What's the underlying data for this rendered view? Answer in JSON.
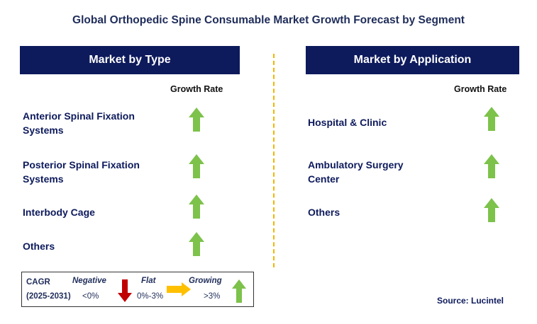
{
  "title": "Global Orthopedic Spine Consumable Market Growth Forecast by Segment",
  "left_panel": {
    "header": "Market by Type",
    "growth_header": "Growth Rate",
    "rows": [
      {
        "line1": "Anterior Spinal Fixation",
        "line2": "Systems",
        "trend": "growing"
      },
      {
        "line1": "Posterior Spinal Fixation",
        "line2": "Systems",
        "trend": "growing"
      },
      {
        "line1": "Interbody Cage",
        "line2": "",
        "trend": "growing"
      },
      {
        "line1": "Others",
        "line2": "",
        "trend": "growing"
      }
    ]
  },
  "right_panel": {
    "header": "Market by Application",
    "growth_header": "Growth Rate",
    "rows": [
      {
        "line1": "Hospital & Clinic",
        "line2": "",
        "trend": "growing"
      },
      {
        "line1": "Ambulatory Surgery",
        "line2": "Center",
        "trend": "growing"
      },
      {
        "line1": "Others",
        "line2": "",
        "trend": "growing"
      }
    ]
  },
  "legend": {
    "cagr_label": "CAGR",
    "period": "(2025-2031)",
    "negative_label": "Negative",
    "negative_range": "<0%",
    "flat_label": "Flat",
    "flat_range": "0%-3%",
    "growing_label": "Growing",
    "growing_range": ">3%"
  },
  "source": "Source: Lucintel",
  "colors": {
    "header_bg": "#0d1a5c",
    "growing_arrow": "#7dc24b",
    "negative_arrow": "#c00000",
    "flat_arrow": "#ffc000",
    "divider": "#f0b500"
  }
}
